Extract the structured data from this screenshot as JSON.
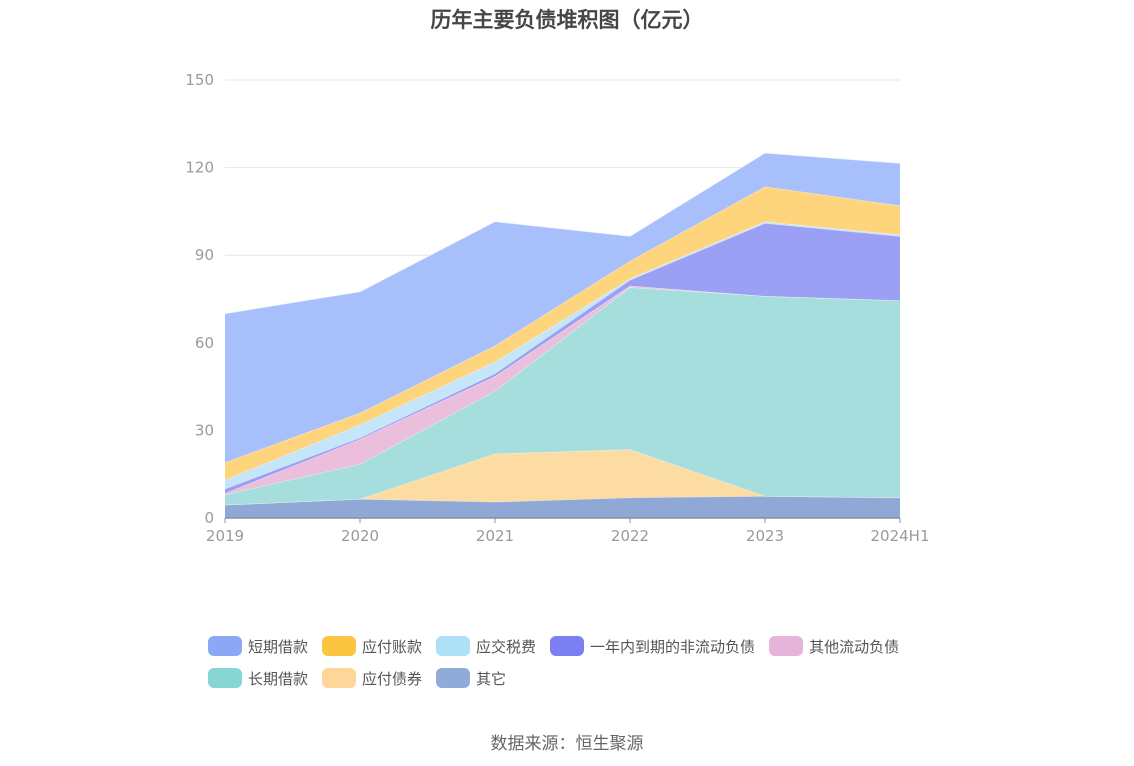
{
  "chart_data": {
    "type": "area",
    "stacked": true,
    "title": "历年主要负债堆积图（亿元）",
    "categories": [
      "2019",
      "2020",
      "2021",
      "2022",
      "2023",
      "2024H1"
    ],
    "ylim": [
      0,
      150
    ],
    "yticks": [
      0,
      30,
      60,
      90,
      120,
      150
    ],
    "grid": true,
    "legend_position": "bottom",
    "series": [
      {
        "name": "其它",
        "color": "#8fa8d6",
        "values": [
          4.5,
          6.5,
          5.5,
          7.0,
          7.5,
          7.0
        ]
      },
      {
        "name": "应付债券",
        "color": "#fddca3",
        "values": [
          0,
          0,
          16.5,
          16.5,
          0,
          0
        ]
      },
      {
        "name": "长期借款",
        "color": "#a6dede",
        "values": [
          3.5,
          12.0,
          21.5,
          55.5,
          68.5,
          67.5
        ]
      },
      {
        "name": "其他流动负债",
        "color": "#ebbedc",
        "values": [
          0.5,
          8.5,
          5.0,
          0.5,
          0,
          0
        ]
      },
      {
        "name": "一年内到期的非流动负债",
        "color": "#9ba0f4",
        "values": [
          1.5,
          0.5,
          1.0,
          2.0,
          25.0,
          22.0
        ]
      },
      {
        "name": "应交税费",
        "color": "#c4e6f8",
        "values": [
          3.0,
          4.5,
          4.0,
          0.5,
          0.5,
          0.5
        ]
      },
      {
        "name": "应付账款",
        "color": "#fed47c",
        "values": [
          6.0,
          4.0,
          5.5,
          6.0,
          12.0,
          10.0
        ]
      },
      {
        "name": "短期借款",
        "color": "#a7bffb",
        "values": [
          51.0,
          41.5,
          42.5,
          8.5,
          11.5,
          14.5
        ]
      }
    ]
  },
  "legend": {
    "items": [
      {
        "label": "短期借款",
        "color": "#8aa8f5"
      },
      {
        "label": "应付账款",
        "color": "#fcc43f"
      },
      {
        "label": "应交税费",
        "color": "#aee0f7"
      },
      {
        "label": "一年内到期的非流动负债",
        "color": "#7b7ff1"
      },
      {
        "label": "其他流动负债",
        "color": "#e8b3da"
      },
      {
        "label": "长期借款",
        "color": "#86d6d6"
      },
      {
        "label": "应付债券",
        "color": "#fed69a"
      },
      {
        "label": "其它",
        "color": "#8fabd8"
      }
    ]
  },
  "source_note": "数据来源：恒生聚源"
}
